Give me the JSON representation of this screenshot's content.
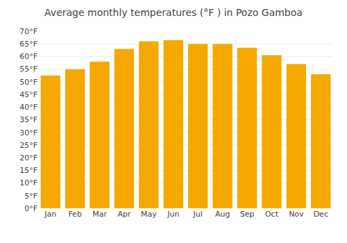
{
  "chart_data": {
    "type": "bar",
    "title": "Average monthly temperatures (°F ) in Pozo Gamboa",
    "categories": [
      "Jan",
      "Feb",
      "Mar",
      "Apr",
      "May",
      "Jun",
      "Jul",
      "Aug",
      "Sep",
      "Oct",
      "Nov",
      "Dec"
    ],
    "values": [
      52.5,
      55.0,
      58.0,
      63.0,
      66.0,
      66.5,
      65.0,
      65.0,
      63.5,
      60.5,
      57.0,
      53.0
    ],
    "color": "#F5A800",
    "ylim": [
      0,
      70
    ],
    "yticks": [
      {
        "value": 0,
        "label": "0°F"
      },
      {
        "value": 5,
        "label": "5°F"
      },
      {
        "value": 10,
        "label": "10°F"
      },
      {
        "value": 15,
        "label": "15°F"
      },
      {
        "value": 20,
        "label": "20°F"
      },
      {
        "value": 25,
        "label": "25°F"
      },
      {
        "value": 30,
        "label": "30°F"
      },
      {
        "value": 35,
        "label": "35°F"
      },
      {
        "value": 40,
        "label": "40°F"
      },
      {
        "value": 45,
        "label": "45°F"
      },
      {
        "value": 50,
        "label": "50°F"
      },
      {
        "value": 55,
        "label": "55°F"
      },
      {
        "value": 60,
        "label": "60°F"
      },
      {
        "value": 65,
        "label": "65°F"
      },
      {
        "value": 70,
        "label": "70°F"
      }
    ],
    "grid": true
  }
}
